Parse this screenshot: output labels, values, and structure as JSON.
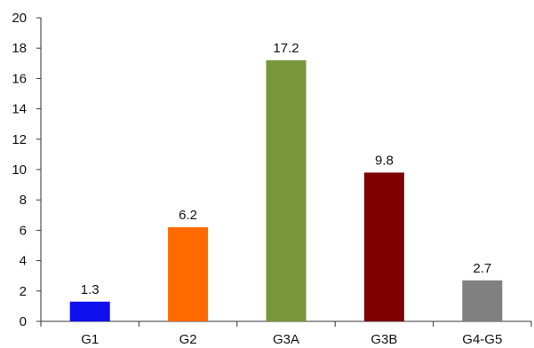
{
  "chart_data": {
    "type": "bar",
    "title": "",
    "xlabel": "",
    "ylabel": "",
    "categories": [
      "G1",
      "G2",
      "G3A",
      "G3B",
      "G4-G5"
    ],
    "values": [
      1.3,
      6.2,
      17.2,
      9.8,
      2.7
    ],
    "value_labels": [
      "1.3",
      "6.2",
      "17.2",
      "9.8",
      "2.7"
    ],
    "colors": [
      "#1010ee",
      "#ff6a00",
      "#77973a",
      "#7f0000",
      "#808080"
    ],
    "ylim": [
      0,
      20
    ],
    "yticks": [
      0,
      2,
      4,
      6,
      8,
      10,
      12,
      14,
      16,
      18,
      20
    ],
    "grid": false,
    "legend": "none",
    "axis_color": "#333333"
  }
}
